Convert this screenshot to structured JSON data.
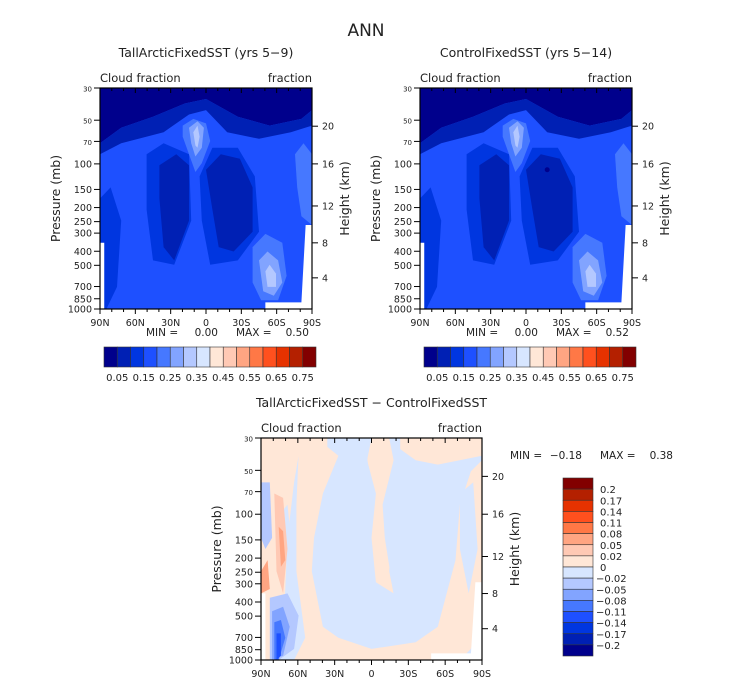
{
  "page_title": "ANN",
  "chart_data": [
    {
      "type": "heatmap",
      "title": "TallArcticFixedSST (yrs 5−9)",
      "left_label": "Cloud fraction",
      "right_label": "fraction",
      "ylabel": "Pressure (mb)",
      "ylabel_right": "Height (km)",
      "xlabel": "",
      "x_ticks": [
        "90N",
        "60N",
        "30N",
        "0",
        "30S",
        "60S",
        "90S"
      ],
      "y_ticks": [
        "30",
        "50",
        "70",
        "100",
        "150",
        "200",
        "250",
        "300",
        "400",
        "500",
        "700",
        "850",
        "1000"
      ],
      "y_ticks_right": [
        "20",
        "16",
        "12",
        "8",
        "4"
      ],
      "xlim": [
        90,
        -90
      ],
      "ylim": [
        1000,
        30
      ],
      "stats": {
        "min_label": "MIN =",
        "min": "0.00",
        "max_label": "MAX =",
        "max": "0.50"
      },
      "colorbar": {
        "orientation": "horizontal",
        "levels": [
          "0.05",
          "0.15",
          "0.25",
          "0.35",
          "0.45",
          "0.55",
          "0.65",
          "0.75"
        ],
        "colors": [
          "#00008c",
          "#0020b4",
          "#0036e0",
          "#1e50ff",
          "#4678ff",
          "#82a4ff",
          "#b4c8ff",
          "#d7e6ff",
          "#ffe7d7",
          "#ffc9b4",
          "#ffa582",
          "#ff7846",
          "#ff501e",
          "#e63200",
          "#b42000",
          "#820000"
        ]
      },
      "features": [
        "dark-blue upper troposphere above ~250 mb",
        "light-blue maximum (~0.35) near 0° at ~200 mb",
        "dark-blue minima (~0.05-0.10) in subtropics 10-40N and 5-30S, 300-700 mb",
        "light-blue low-cloud maximum (~0.35) near 55S at ~850 mb"
      ]
    },
    {
      "type": "heatmap",
      "title": "ControlFixedSST (yrs 5−14)",
      "left_label": "Cloud fraction",
      "right_label": "fraction",
      "ylabel": "Pressure (mb)",
      "ylabel_right": "Height (km)",
      "xlabel": "",
      "x_ticks": [
        "90N",
        "60N",
        "30N",
        "0",
        "30S",
        "60S",
        "90S"
      ],
      "y_ticks": [
        "30",
        "50",
        "70",
        "100",
        "150",
        "200",
        "250",
        "300",
        "400",
        "500",
        "700",
        "850",
        "1000"
      ],
      "y_ticks_right": [
        "20",
        "16",
        "12",
        "8",
        "4"
      ],
      "xlim": [
        90,
        -90
      ],
      "ylim": [
        1000,
        30
      ],
      "stats": {
        "min_label": "MIN =",
        "min": "0.00",
        "max_label": "MAX =",
        "max": "0.52"
      },
      "colorbar": {
        "orientation": "horizontal",
        "levels": [
          "0.05",
          "0.15",
          "0.25",
          "0.35",
          "0.45",
          "0.55",
          "0.65",
          "0.75"
        ],
        "colors": [
          "#00008c",
          "#0020b4",
          "#0036e0",
          "#1e50ff",
          "#4678ff",
          "#82a4ff",
          "#b4c8ff",
          "#d7e6ff",
          "#ffe7d7",
          "#ffc9b4",
          "#ffa582",
          "#ff7846",
          "#ff501e",
          "#e63200",
          "#b42000",
          "#820000"
        ]
      },
      "features": [
        "pattern nearly identical to TallArcticFixedSST panel",
        "light-blue maximum near 0° at ~200 mb",
        "light-blue low-cloud maximum near 55S at ~850 mb"
      ]
    },
    {
      "type": "heatmap",
      "title": "TallArcticFixedSST − ControlFixedSST",
      "left_label": "Cloud fraction",
      "right_label": "fraction",
      "ylabel": "Pressure (mb)",
      "ylabel_right": "Height (km)",
      "xlabel": "",
      "x_ticks": [
        "90N",
        "60N",
        "30N",
        "0",
        "30S",
        "60S",
        "90S"
      ],
      "y_ticks": [
        "30",
        "50",
        "70",
        "100",
        "150",
        "200",
        "250",
        "300",
        "400",
        "500",
        "700",
        "850",
        "1000"
      ],
      "y_ticks_right": [
        "20",
        "16",
        "12",
        "8",
        "4"
      ],
      "xlim": [
        90,
        -90
      ],
      "ylim": [
        1000,
        30
      ],
      "stats": {
        "min_label": "MIN =",
        "min": "−0.18",
        "max_label": "MAX =",
        "max": "0.38"
      },
      "colorbar": {
        "orientation": "vertical",
        "levels": [
          "0.2",
          "0.17",
          "0.14",
          "0.11",
          "0.08",
          "0.05",
          "0.02",
          "0",
          "−0.02",
          "−0.05",
          "−0.08",
          "−0.11",
          "−0.14",
          "−0.17",
          "−0.2"
        ],
        "colors": [
          "#820000",
          "#b42000",
          "#e63200",
          "#ff501e",
          "#ff7846",
          "#ffa582",
          "#ffc9b4",
          "#ffe7d7",
          "#d7e6ff",
          "#b4c8ff",
          "#82a4ff",
          "#4678ff",
          "#1e50ff",
          "#0036e0",
          "#0020b4",
          "#00008c"
        ]
      },
      "features": [
        "mostly near-zero differences (±0.02)",
        "positive anomaly (0.05-0.08) near 80N between 400-700 mb",
        "negative anomaly (down to −0.18) near 85N at 850-1000 mb"
      ]
    }
  ]
}
